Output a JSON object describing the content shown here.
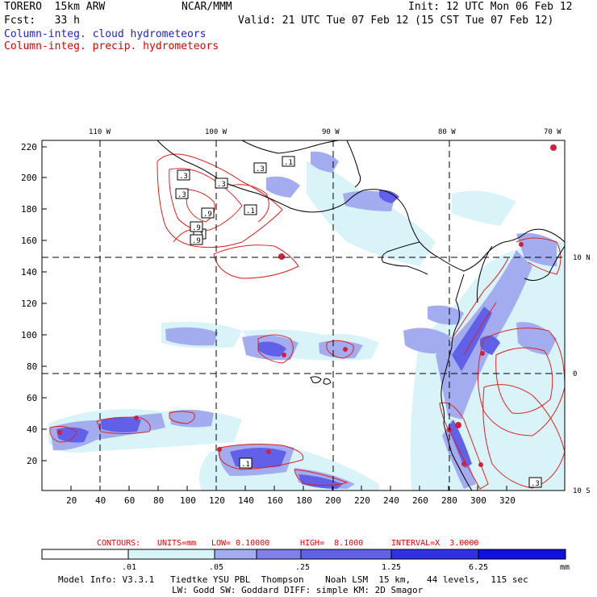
{
  "header": {
    "model": "TORERO  15km ARW",
    "org": "NCAR/MMM",
    "init": "Init: 12 UTC Mon 06 Feb 12",
    "fcst": "Fcst:   33 h",
    "valid": "Valid: 21 UTC Tue 07 Feb 12 (15 CST Tue 07 Feb 12)"
  },
  "legend": {
    "cloud": "Column-integ. cloud hydrometeors",
    "precip": "Column-integ. precip. hydrometeors"
  },
  "map": {
    "lon_labels": [
      "110 W",
      "100 W",
      "90 W",
      "80 W",
      "70 W"
    ],
    "lat_labels": [
      "10 N",
      "0",
      "10 S"
    ],
    "y_ticks": [
      "220",
      "200",
      "180",
      "160",
      "140",
      "120",
      "100",
      "80",
      "60",
      "40",
      "20"
    ],
    "x_ticks": [
      "20",
      "40",
      "60",
      "80",
      "100",
      "120",
      "140",
      "160",
      "180",
      "200",
      "220",
      "240",
      "260",
      "280",
      "300",
      "320"
    ],
    "contour_labels": [
      ".3",
      ".1",
      ".3",
      ".3",
      ".3",
      ".1",
      ".1",
      ".9",
      ".9",
      ".9",
      ".1",
      ".3"
    ]
  },
  "contours_info": {
    "label": "CONTOURS:",
    "units": "UNITS=mm",
    "low": "LOW= 0.10000",
    "high": "HIGH=  8.1000",
    "interval": "INTERVAL=X  3.0000"
  },
  "colorbar": {
    "ticks": [
      ".01",
      ".05",
      ".25",
      "1.25",
      "6.25"
    ],
    "units": "mm",
    "colors": [
      "#ffffff",
      "#d8f4f8",
      "#a4acf0",
      "#8080ec",
      "#6060e8",
      "#3030e4",
      "#1010e0"
    ]
  },
  "footer": {
    "line1": "Model Info: V3.3.1   Tiedtke YSU PBL  Thompson    Noah LSM  15 km,   44 levels,  115 sec",
    "line2": "LW: Godd SW: Goddard DIFF: simple KM: 2D Smagor"
  }
}
